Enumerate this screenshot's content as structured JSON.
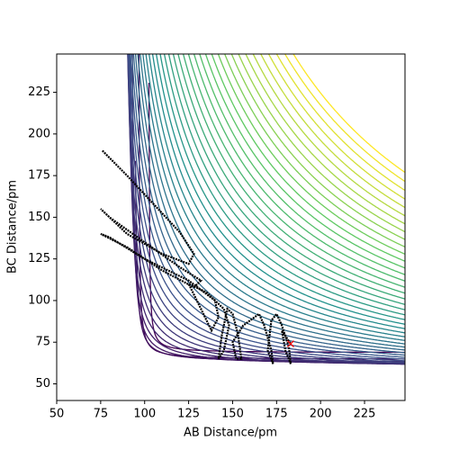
{
  "chart_data": {
    "type": "line",
    "x_label": "AB Distance/pm",
    "y_label": "BC Distance/pm",
    "xlim": [
      50,
      248
    ],
    "ylim": [
      40,
      248
    ],
    "xticks": [
      50,
      75,
      100,
      125,
      150,
      175,
      200,
      225
    ],
    "yticks": [
      50,
      75,
      100,
      125,
      150,
      175,
      200,
      225
    ],
    "series": [
      {
        "color": "#000000",
        "x": [
          76,
          90,
          105,
          120,
          128,
          125,
          110,
          90,
          75,
          80,
          100,
          120,
          132,
          128,
          110,
          90,
          75,
          80,
          100,
          125,
          140,
          142,
          138,
          132,
          125,
          135,
          145,
          148,
          145,
          142,
          144,
          147,
          150,
          153,
          155,
          152,
          150,
          156,
          165,
          168,
          172,
          173,
          170,
          172,
          175,
          178,
          182,
          183,
          180,
          178,
          183
        ],
        "values": [
          190,
          175,
          158,
          141,
          128,
          122,
          128,
          140,
          155,
          150,
          135,
          120,
          112,
          108,
          118,
          132,
          140,
          138,
          125,
          112,
          100,
          90,
          82,
          95,
          110,
          105,
          95,
          85,
          70,
          65,
          80,
          95,
          92,
          80,
          65,
          65,
          75,
          85,
          92,
          85,
          70,
          62,
          70,
          88,
          92,
          85,
          72,
          62,
          70,
          82,
          74
        ]
      }
    ],
    "end_marker": {
      "x": 183,
      "y": 74,
      "color": "#ff0000"
    }
  }
}
